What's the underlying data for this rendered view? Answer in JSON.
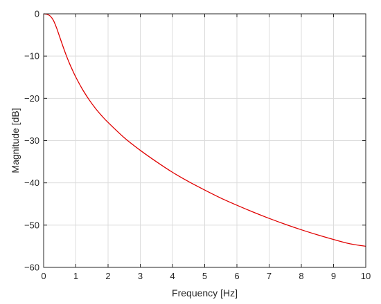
{
  "chart_data": {
    "type": "line",
    "title": "",
    "xlabel": "Frequency [Hz]",
    "ylabel": "Magnitude [dB]",
    "xlim": [
      0,
      10
    ],
    "ylim": [
      -60,
      0
    ],
    "xticks": [
      0,
      1,
      2,
      3,
      4,
      5,
      6,
      7,
      8,
      9,
      10
    ],
    "xtick_labels": [
      "0",
      "1",
      "2",
      "3",
      "4",
      "5",
      "6",
      "7",
      "8",
      "9",
      "10"
    ],
    "yticks": [
      0,
      -10,
      -20,
      -30,
      -40,
      -50,
      -60
    ],
    "ytick_labels": [
      "0",
      "−10",
      "−20",
      "−30",
      "−40",
      "−50",
      "−60"
    ],
    "grid": true,
    "legend": "none",
    "series": [
      {
        "color": "#e00000",
        "x": [
          0,
          0.1,
          0.2,
          0.3,
          0.4,
          0.5,
          0.6,
          0.7,
          0.8,
          0.9,
          1.0,
          1.2,
          1.4,
          1.6,
          1.8,
          2.0,
          2.5,
          3.0,
          3.5,
          4.0,
          4.5,
          5.0,
          5.5,
          6.0,
          6.5,
          7.0,
          7.5,
          8.0,
          8.5,
          9.0,
          9.5,
          10.0
        ],
        "y": [
          0,
          -0.1,
          -0.5,
          -1.5,
          -3.3,
          -5.5,
          -7.7,
          -9.8,
          -11.7,
          -13.4,
          -15.0,
          -17.8,
          -20.2,
          -22.3,
          -24.1,
          -25.7,
          -29.3,
          -32.3,
          -35.0,
          -37.5,
          -39.7,
          -41.7,
          -43.6,
          -45.3,
          -46.9,
          -48.4,
          -49.8,
          -51.1,
          -52.3,
          -53.4,
          -54.4,
          -55.0
        ]
      }
    ]
  }
}
